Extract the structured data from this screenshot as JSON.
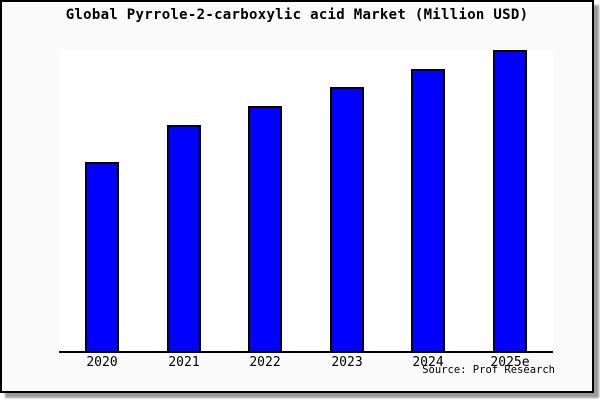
{
  "title": "Global Pyrrole-2-carboxylic acid Market (Million USD)",
  "source": {
    "label": "Source: Prof Research"
  },
  "colors": {
    "bar_fill": "#0000ff",
    "bar_outline": "#000000",
    "canvas_background": "#fafafa",
    "plot_background": "#ffffff",
    "axis": "#000000",
    "frame_border": "#000000"
  },
  "chart_data": {
    "type": "bar",
    "title": "Global Pyrrole-2-carboxylic acid Market (Million USD)",
    "categories": [
      "2020",
      "2021",
      "2022",
      "2023",
      "2024",
      "2025e"
    ],
    "values": [
      62.8,
      75.1,
      81.4,
      87.7,
      93.7,
      100
    ],
    "units": "relative (y-axis has no ticks or labels; values estimated as % of tallest 2025e bar)",
    "xlabel": "",
    "ylabel": "",
    "ylim": [
      0,
      100
    ],
    "grid": false,
    "legend_position": "none",
    "source": "Source: Prof Research"
  }
}
